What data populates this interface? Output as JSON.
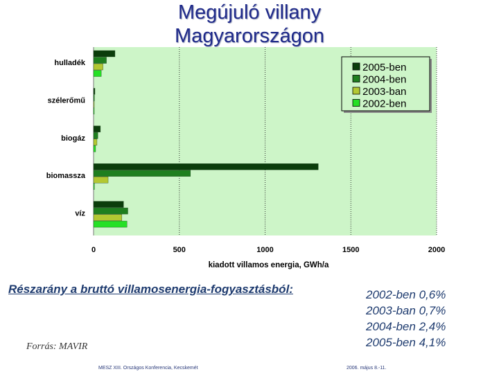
{
  "slide": {
    "title_line1": "Megújuló villany",
    "title_line2": "Magyarországon",
    "share_label": "Részarány a bruttó villamosenergia-fogyasztásból:",
    "shares": [
      "2002-ben 0,6%",
      "2003-ban 0,7%",
      "2004-ben 2,4%",
      "2005-ben 4,1%"
    ],
    "source": "Forrás: MAVIR",
    "footer_left": "MESZ XIII. Országos Konferencia, Kecskemét",
    "footer_right": "2006. május 8.-11."
  },
  "chart_data": {
    "type": "bar",
    "orientation": "horizontal",
    "categories": [
      "hulladék",
      "szélerőmű",
      "biogáz",
      "biomassza",
      "víz"
    ],
    "series": [
      {
        "name": "2005-ben",
        "color": "#0b3d0b",
        "values": [
          125,
          8,
          40,
          1310,
          175
        ]
      },
      {
        "name": "2004-ben",
        "color": "#1f7f1f",
        "values": [
          75,
          5,
          25,
          565,
          200
        ]
      },
      {
        "name": "2003-ban",
        "color": "#b3c832",
        "values": [
          55,
          3,
          20,
          85,
          165
        ]
      },
      {
        "name": "2002-ben",
        "color": "#25e025",
        "values": [
          45,
          2,
          12,
          5,
          195
        ]
      }
    ],
    "xlabel": "kiadott villamos energia, GWh/a",
    "xlim": [
      0,
      2000
    ],
    "xticks": [
      "0",
      "500",
      "1000",
      "1500",
      "2000"
    ],
    "grid": "vertical dotted",
    "legend": "top-right",
    "plot_background": "#cdf5c8"
  }
}
